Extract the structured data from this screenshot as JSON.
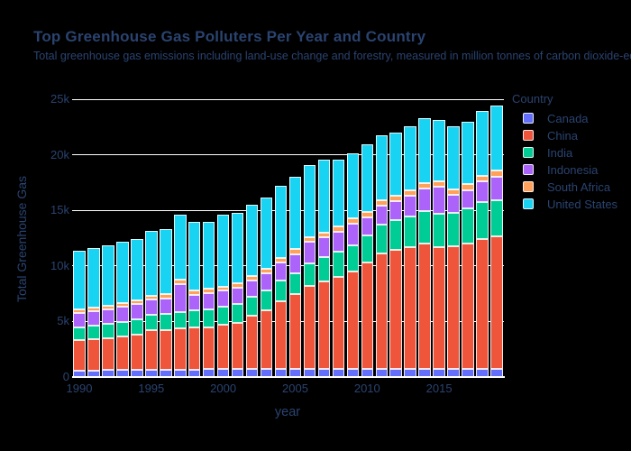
{
  "figure": {
    "background_color": "#000000",
    "text_color": "#2a4370",
    "grid_color": "#ffffff",
    "bar_outline_color": "#ffffff"
  },
  "chart_data": {
    "type": "bar",
    "stacked": true,
    "title": "Top Greenhouse Gas Polluters Per Year and Country",
    "subtitle": "Total greenhouse gas emissions including land-use change and forestry, measured in million tonnes of carbon dioxide-equivalents.",
    "xlabel": "year",
    "ylabel": "Total Greenhouse Gas",
    "legend_title": "Country",
    "legend_position": "right",
    "grid": true,
    "ylim": [
      0,
      25000
    ],
    "ytick_values": [
      0,
      5000,
      10000,
      15000,
      20000,
      25000
    ],
    "ytick_labels": [
      "0",
      "5k",
      "10k",
      "15k",
      "20k",
      "25k"
    ],
    "xtick_values": [
      1990,
      1995,
      2000,
      2005,
      2010,
      2015
    ],
    "x": [
      1990,
      1991,
      1992,
      1993,
      1994,
      1995,
      1996,
      1997,
      1998,
      1999,
      2000,
      2001,
      2002,
      2003,
      2004,
      2005,
      2006,
      2007,
      2008,
      2009,
      2010,
      2011,
      2012,
      2013,
      2014,
      2015,
      2016,
      2017,
      2018,
      2019
    ],
    "series": [
      {
        "name": "Canada",
        "color": "#636EFA",
        "values": [
          600,
          610,
          620,
          630,
          640,
          650,
          670,
          680,
          690,
          700,
          710,
          710,
          720,
          730,
          730,
          730,
          720,
          740,
          730,
          720,
          720,
          730,
          730,
          730,
          730,
          730,
          710,
          720,
          740,
          730
        ]
      },
      {
        "name": "China",
        "color": "#EF553B",
        "values": [
          2700,
          2800,
          2900,
          3050,
          3200,
          3550,
          3550,
          3700,
          3750,
          3800,
          4000,
          4200,
          4800,
          5300,
          6100,
          6700,
          7500,
          7900,
          8300,
          8800,
          9600,
          10400,
          10700,
          11000,
          11300,
          11000,
          11100,
          11300,
          11700,
          11900
        ]
      },
      {
        "name": "India",
        "color": "#00CC96",
        "values": [
          1200,
          1230,
          1270,
          1310,
          1360,
          1410,
          1460,
          1500,
          1530,
          1580,
          1620,
          1660,
          1700,
          1760,
          1860,
          1940,
          2030,
          2130,
          2230,
          2370,
          2450,
          2560,
          2660,
          2750,
          2900,
          2950,
          3000,
          3120,
          3270,
          3300
        ]
      },
      {
        "name": "Indonesia",
        "color": "#AB63FA",
        "values": [
          1300,
          1290,
          1310,
          1330,
          1350,
          1380,
          1400,
          2500,
          1450,
          1500,
          1440,
          1480,
          1500,
          1560,
          1640,
          1700,
          1920,
          1780,
          1820,
          1900,
          1620,
          1700,
          1750,
          1800,
          2000,
          2440,
          1600,
          1700,
          1900,
          2100
        ]
      },
      {
        "name": "South Africa",
        "color": "#FFA15A",
        "values": [
          320,
          320,
          330,
          330,
          340,
          350,
          360,
          360,
          370,
          370,
          380,
          380,
          390,
          400,
          420,
          430,
          440,
          450,
          470,
          480,
          490,
          490,
          490,
          500,
          510,
          500,
          500,
          510,
          520,
          520
        ]
      },
      {
        "name": "United States",
        "color": "#19D3F3",
        "values": [
          5280,
          5320,
          5400,
          5500,
          5570,
          5800,
          5840,
          5900,
          6200,
          6000,
          6430,
          6320,
          6370,
          6400,
          6480,
          6500,
          6440,
          6530,
          6000,
          5870,
          6070,
          5900,
          5660,
          5810,
          5860,
          5500,
          5650,
          5620,
          5800,
          5880
        ]
      }
    ]
  }
}
